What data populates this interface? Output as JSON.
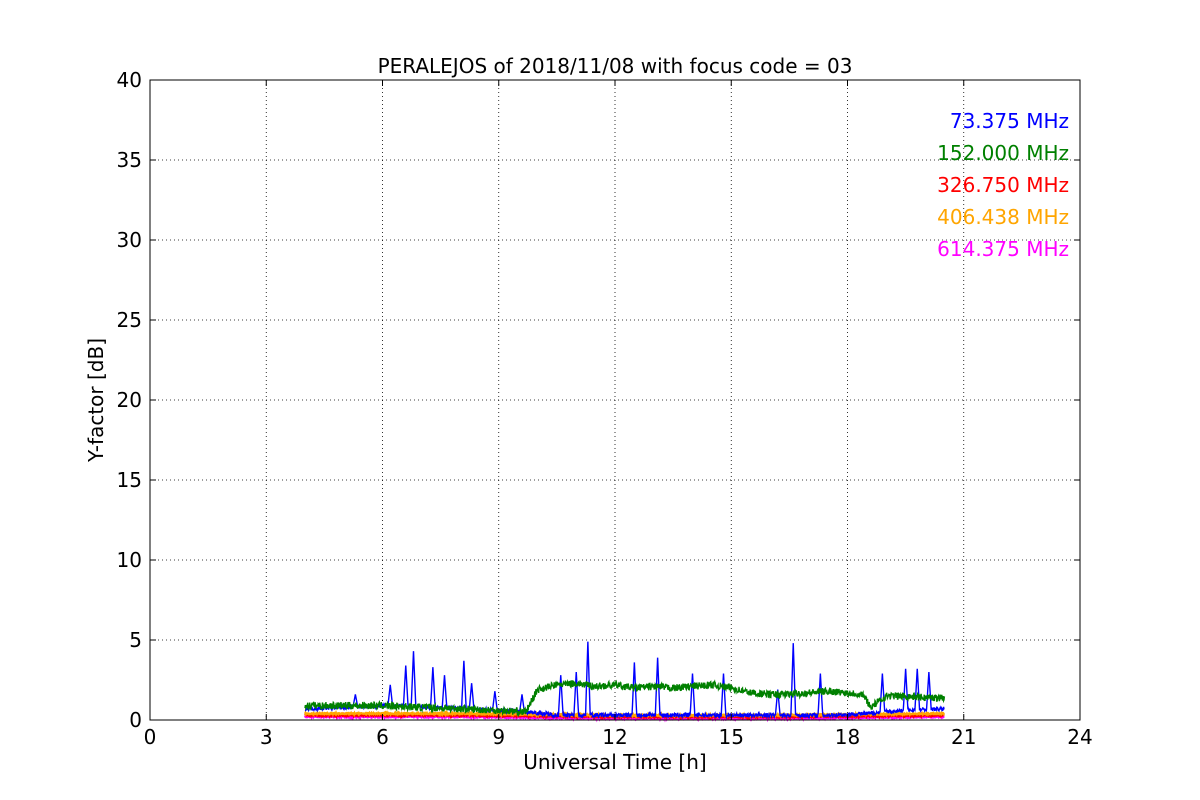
{
  "chart_data": {
    "type": "line",
    "title": "PERALEJOS of 2018/11/08 with focus code = 03",
    "xlabel": "Universal Time [h]",
    "ylabel": "Y-factor [dB]",
    "xlim": [
      0,
      24
    ],
    "ylim": [
      0,
      40
    ],
    "xticks": [
      "0",
      "3",
      "6",
      "9",
      "12",
      "15",
      "18",
      "21",
      "24"
    ],
    "yticks": [
      "0",
      "5",
      "10",
      "15",
      "20",
      "25",
      "30",
      "35",
      "40"
    ],
    "grid": true,
    "legend_position": "top-right",
    "series": [
      {
        "name": "73.375 MHz",
        "color": "#0000ff",
        "x": [
          4.0,
          5.0,
          6.0,
          7.0,
          8.0,
          9.0,
          9.8,
          10.5,
          11.5,
          12.5,
          13.5,
          14.5,
          15.5,
          16.5,
          17.5,
          18.5,
          19.5,
          20.5
        ],
        "y": [
          0.7,
          0.8,
          0.9,
          0.8,
          0.7,
          0.6,
          0.5,
          0.3,
          0.3,
          0.3,
          0.3,
          0.3,
          0.3,
          0.3,
          0.3,
          0.4,
          0.6,
          0.7
        ],
        "spikes": [
          [
            5.3,
            1.6
          ],
          [
            6.2,
            2.2
          ],
          [
            6.6,
            3.4
          ],
          [
            6.8,
            4.3
          ],
          [
            7.3,
            3.3
          ],
          [
            7.6,
            2.8
          ],
          [
            8.1,
            3.7
          ],
          [
            8.3,
            2.3
          ],
          [
            8.9,
            1.8
          ],
          [
            9.6,
            1.6
          ],
          [
            10.6,
            2.8
          ],
          [
            11.0,
            3.0
          ],
          [
            11.3,
            4.9
          ],
          [
            12.5,
            3.6
          ],
          [
            13.1,
            3.9
          ],
          [
            14.0,
            2.9
          ],
          [
            14.8,
            2.9
          ],
          [
            16.2,
            1.9
          ],
          [
            16.6,
            4.8
          ],
          [
            17.3,
            2.9
          ],
          [
            18.9,
            2.9
          ],
          [
            19.5,
            3.2
          ],
          [
            19.8,
            3.2
          ],
          [
            20.1,
            3.0
          ]
        ]
      },
      {
        "name": "152.000 MHz",
        "color": "#008000",
        "x": [
          4.0,
          5.0,
          6.0,
          7.0,
          8.0,
          9.0,
          9.7,
          10.0,
          10.5,
          11.0,
          11.5,
          12.0,
          12.5,
          13.0,
          13.5,
          14.0,
          14.5,
          15.0,
          15.5,
          16.0,
          16.5,
          17.0,
          17.5,
          18.0,
          18.4,
          18.6,
          19.0,
          19.5,
          20.0,
          20.5
        ],
        "y": [
          0.9,
          0.9,
          0.9,
          0.8,
          0.7,
          0.6,
          0.5,
          1.9,
          2.2,
          2.3,
          2.1,
          2.2,
          2.0,
          2.1,
          2.0,
          2.1,
          2.2,
          2.0,
          1.7,
          1.6,
          1.6,
          1.7,
          1.8,
          1.7,
          1.6,
          0.8,
          1.5,
          1.5,
          1.4,
          1.4
        ]
      },
      {
        "name": "326.750 MHz",
        "color": "#ff0000",
        "x": [
          4.0,
          8.0,
          12.0,
          16.0,
          20.5
        ],
        "y": [
          0.3,
          0.3,
          0.2,
          0.2,
          0.3
        ]
      },
      {
        "name": "406.438 MHz",
        "color": "#ffa500",
        "x": [
          4.0,
          8.0,
          12.0,
          16.0,
          20.5
        ],
        "y": [
          0.4,
          0.4,
          0.3,
          0.3,
          0.4
        ]
      },
      {
        "name": "614.375 MHz",
        "color": "#ff00ff",
        "x": [
          4.0,
          8.0,
          12.0,
          16.0,
          20.5
        ],
        "y": [
          0.2,
          0.2,
          0.1,
          0.1,
          0.2
        ]
      }
    ]
  }
}
